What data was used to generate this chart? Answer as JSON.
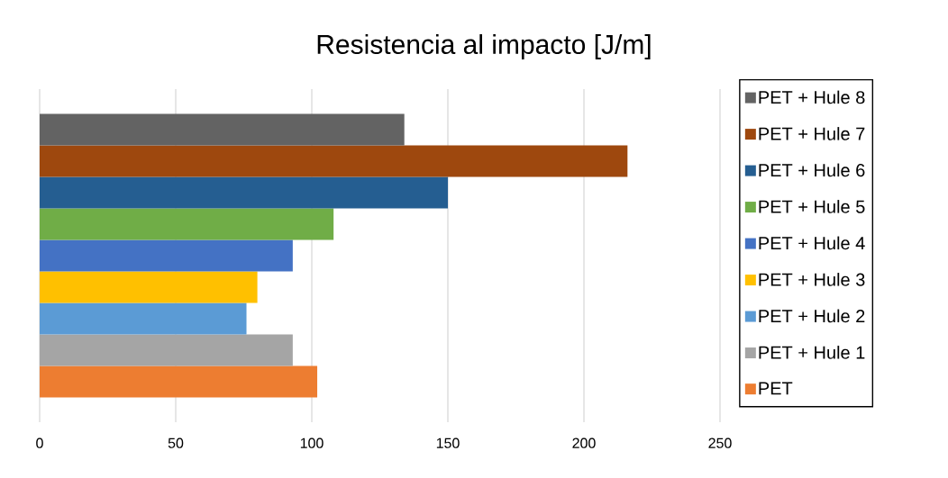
{
  "chart_data": {
    "type": "bar",
    "orientation": "horizontal",
    "title": "Resistencia al impacto [J/m]",
    "categories": [
      null
    ],
    "series": [
      {
        "name": "PET",
        "color": "#ed7d31",
        "values": [
          102
        ]
      },
      {
        "name": "PET + Hule 1",
        "color": "#a5a5a5",
        "values": [
          93
        ]
      },
      {
        "name": "PET + Hule 2",
        "color": "#5b9bd5",
        "values": [
          76
        ]
      },
      {
        "name": "PET + Hule 3",
        "color": "#ffc000",
        "values": [
          80
        ]
      },
      {
        "name": "PET + Hule 4",
        "color": "#4472c4",
        "values": [
          93
        ]
      },
      {
        "name": "PET + Hule 5",
        "color": "#70ad47",
        "values": [
          108
        ]
      },
      {
        "name": "PET + Hule 6",
        "color": "#255e91",
        "values": [
          150
        ]
      },
      {
        "name": "PET + Hule 7",
        "color": "#9e480e",
        "values": [
          216
        ]
      },
      {
        "name": "PET + Hule 8",
        "color": "#636363",
        "values": [
          134
        ]
      }
    ],
    "xlim": [
      0,
      250
    ],
    "xticks": [
      0,
      50,
      100,
      150,
      200,
      250
    ],
    "grid": "x",
    "legend": "right",
    "tick_labels": "x"
  }
}
